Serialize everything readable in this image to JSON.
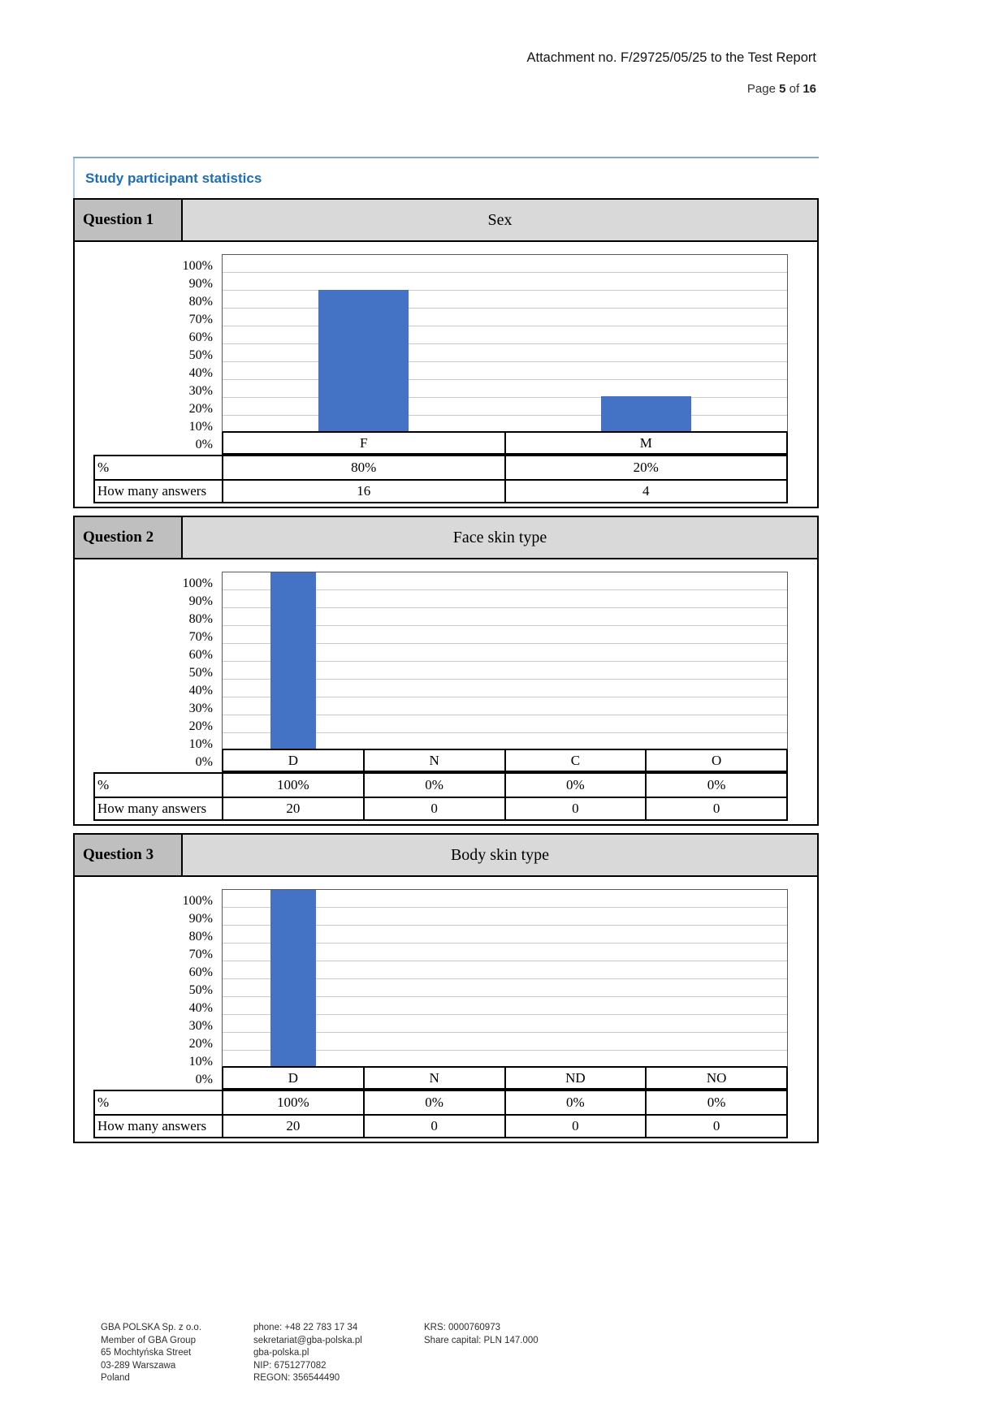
{
  "header": {
    "attachment_line": "Attachment no. F/29725/05/25 to the Test Report",
    "page_label": "Page",
    "page_number": "5",
    "of_label": "of",
    "page_total": "16"
  },
  "panel": {
    "title": "Study participant statistics"
  },
  "colors": {
    "bar_blue": "#4472C4",
    "accent_blue": "#1F6DB3",
    "header_cell_gray": "#BFBFBF",
    "header_title_gray": "#D9D9D9"
  },
  "chart_data": [
    {
      "type": "bar",
      "question_label": "Question 1",
      "title": "Sex",
      "categories": [
        "F",
        "M"
      ],
      "values": [
        80,
        20
      ],
      "ylim": [
        0,
        100
      ],
      "yticks": [
        "100%",
        "90%",
        "80%",
        "70%",
        "60%",
        "50%",
        "40%",
        "30%",
        "20%",
        "10%",
        "0%"
      ],
      "grid": true,
      "legend": "none",
      "bar_color": "#4472C4",
      "table_rows": [
        {
          "label": "%",
          "values": [
            "80%",
            "20%"
          ]
        },
        {
          "label": "How many answers",
          "values": [
            "16",
            "4"
          ]
        }
      ]
    },
    {
      "type": "bar",
      "question_label": "Question 2",
      "title": "Face skin type",
      "categories": [
        "D",
        "N",
        "C",
        "O"
      ],
      "values": [
        100,
        0,
        0,
        0
      ],
      "ylim": [
        0,
        100
      ],
      "yticks": [
        "100%",
        "90%",
        "80%",
        "70%",
        "60%",
        "50%",
        "40%",
        "30%",
        "20%",
        "10%",
        "0%"
      ],
      "grid": true,
      "legend": "none",
      "bar_color": "#4472C4",
      "table_rows": [
        {
          "label": "%",
          "values": [
            "100%",
            "0%",
            "0%",
            "0%"
          ]
        },
        {
          "label": "How many answers",
          "values": [
            "20",
            "0",
            "0",
            "0"
          ]
        }
      ]
    },
    {
      "type": "bar",
      "question_label": "Question 3",
      "title": "Body skin type",
      "categories": [
        "D",
        "N",
        "ND",
        "NO"
      ],
      "values": [
        100,
        0,
        0,
        0
      ],
      "ylim": [
        0,
        100
      ],
      "yticks": [
        "100%",
        "90%",
        "80%",
        "70%",
        "60%",
        "50%",
        "40%",
        "30%",
        "20%",
        "10%",
        "0%"
      ],
      "grid": true,
      "legend": "none",
      "bar_color": "#4472C4",
      "table_rows": [
        {
          "label": "%",
          "values": [
            "100%",
            "0%",
            "0%",
            "0%"
          ]
        },
        {
          "label": "How many answers",
          "values": [
            "20",
            "0",
            "0",
            "0"
          ]
        }
      ]
    }
  ],
  "footer": {
    "columns": [
      {
        "lines": [
          "GBA POLSKA Sp. z o.o.",
          "Member of GBA Group",
          "65 Mochtyńska Street",
          "03-289 Warszawa",
          "Poland"
        ]
      },
      {
        "lines": [
          "phone: +48 22 783 17 34",
          "sekretariat@gba-polska.pl",
          "gba-polska.pl",
          "NIP: 6751277082",
          "REGON: 356544490"
        ]
      },
      {
        "lines": [
          "KRS: 0000760973",
          "Share capital: PLN 147.000"
        ]
      }
    ]
  }
}
